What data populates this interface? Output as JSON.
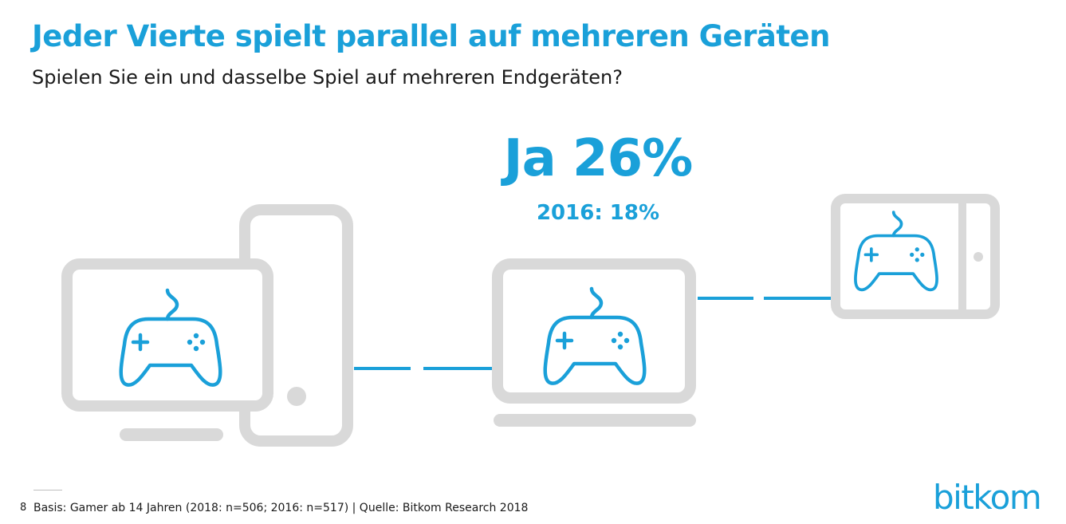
{
  "header": {
    "title": "Jeder Vierte spielt parallel auf mehreren Geräten",
    "subtitle": "Spielen Sie ein und dasselbe Spiel auf mehreren Endgeräten?"
  },
  "stat": {
    "main": "Ja 26%",
    "comparison": "2016: 18%"
  },
  "illustration": {
    "devices": [
      "monitor-icon",
      "smartphone-icon",
      "laptop-icon",
      "tablet-icon"
    ],
    "content_icon": "gamepad-icon",
    "colors": {
      "accent": "#1aa0d9",
      "device": "#d9d9d9"
    }
  },
  "footer": {
    "page_number": "8",
    "note": "Basis: Gamer ab 14 Jahren (2018: n=506; 2016: n=517) | Quelle: Bitkom Research 2018",
    "logo": "bitkom"
  }
}
